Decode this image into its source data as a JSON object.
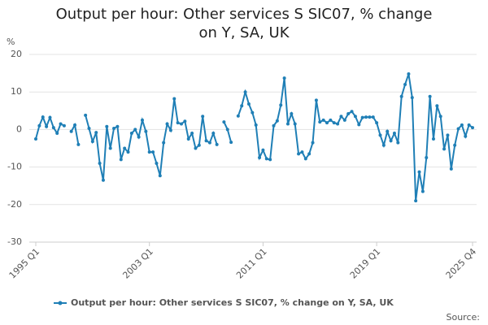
{
  "chart_data": {
    "type": "line",
    "title": "Output per hour: Other services S SIC07, % change on Y, SA, UK",
    "y_label": "%",
    "source": "Source:",
    "categories": [
      "1995 Q1",
      null,
      null,
      null,
      null,
      null,
      null,
      null,
      null,
      null,
      null,
      null,
      null,
      null,
      null,
      null,
      null,
      null,
      null,
      null,
      null,
      null,
      null,
      null,
      null,
      null,
      null,
      null,
      null,
      null,
      null,
      null,
      "2003 Q1",
      null,
      null,
      null,
      null,
      null,
      null,
      null,
      null,
      null,
      null,
      null,
      null,
      null,
      null,
      null,
      null,
      null,
      null,
      null,
      null,
      null,
      null,
      null,
      null,
      null,
      null,
      null,
      null,
      null,
      null,
      null,
      "2011 Q1",
      null,
      null,
      null,
      null,
      null,
      null,
      null,
      null,
      null,
      null,
      null,
      null,
      null,
      null,
      null,
      null,
      null,
      null,
      null,
      null,
      null,
      null,
      null,
      null,
      null,
      null,
      null,
      null,
      null,
      null,
      null,
      "2019 Q1",
      null,
      null,
      null,
      null,
      null,
      null,
      null,
      null,
      null,
      null,
      null,
      null,
      null,
      null,
      null,
      null,
      null,
      null,
      null,
      null,
      null,
      null,
      null,
      null,
      null,
      null,
      "2025 Q4"
    ],
    "series": [
      {
        "name": "Output per hour: Other services S SIC07, % change on Y, SA, UK",
        "color": "#1f7fb6",
        "values": [
          -2.5,
          1,
          3.3,
          0.8,
          3.2,
          0.5,
          -1,
          1.5,
          1,
          null,
          -0.5,
          1.2,
          -4,
          null,
          3.8,
          0.3,
          -3.2,
          -0.8,
          -9,
          -13.5,
          0.8,
          -5,
          0.3,
          0.8,
          -8,
          -5,
          -6,
          -1,
          0,
          -2,
          2.5,
          -0.5,
          -6,
          -6,
          -9,
          -12.3,
          -3.5,
          1.5,
          -0.2,
          8.2,
          1.8,
          1.5,
          2.2,
          -2.5,
          -1,
          -5,
          -4.2,
          3.5,
          -3,
          -3.5,
          -1,
          -4,
          null,
          2,
          0,
          -3.4,
          null,
          3.6,
          6.3,
          10,
          6.8,
          4.5,
          1.2,
          -7.5,
          -5.5,
          -7.8,
          -8,
          1,
          2.3,
          6.5,
          13.7,
          1.5,
          4.2,
          1.5,
          -6.5,
          -6,
          -7.8,
          -6.5,
          -3.5,
          7.8,
          2,
          2.5,
          1.8,
          2.5,
          1.8,
          1.5,
          3.5,
          2.5,
          4.2,
          4.8,
          3.5,
          1.3,
          3.2,
          3.3,
          3.3,
          3.3,
          1.8,
          -1.5,
          -4.2,
          -0.5,
          -3,
          -1,
          -3.5,
          8.8,
          12,
          14.8,
          8.5,
          -19,
          -11.3,
          -16.5,
          -7.5,
          8.8,
          -2.5,
          6.3,
          3.5,
          -5.2,
          -1.5,
          -10.5,
          -4.2,
          0.2,
          1.2,
          -1.8,
          1.2,
          0.5
        ]
      }
    ],
    "ylim": [
      -30,
      20
    ],
    "yticks": [
      20,
      10,
      0,
      -10,
      -20,
      -30
    ],
    "grid": true
  }
}
